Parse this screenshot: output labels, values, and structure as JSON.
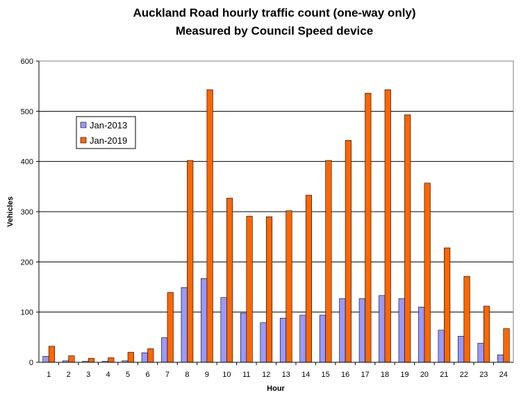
{
  "chart_data": {
    "type": "bar",
    "title": "Auckland Road hourly traffic count (one-way only)",
    "subtitle": "Measured by Council Speed device",
    "xlabel": "Hour",
    "ylabel": "Vehicles",
    "ylim": [
      0,
      600
    ],
    "yticks": [
      "0",
      "100",
      "200",
      "300",
      "400",
      "500",
      "600"
    ],
    "grid": true,
    "legend_position": "upper-left inside plot",
    "categories": [
      "1",
      "2",
      "3",
      "4",
      "5",
      "6",
      "7",
      "8",
      "9",
      "10",
      "11",
      "12",
      "13",
      "14",
      "15",
      "16",
      "17",
      "18",
      "19",
      "20",
      "21",
      "22",
      "23",
      "24"
    ],
    "series": [
      {
        "name": "Jan-2013",
        "color": "#9999ff",
        "values": [
          12,
          3,
          2,
          2,
          3,
          19,
          49,
          149,
          167,
          129,
          98,
          79,
          88,
          94,
          94,
          127,
          127,
          133,
          127,
          110,
          64,
          52,
          38,
          15
        ]
      },
      {
        "name": "Jan-2019",
        "color": "#ff6600",
        "values": [
          32,
          13,
          8,
          9,
          20,
          27,
          139,
          402,
          543,
          327,
          291,
          290,
          302,
          333,
          402,
          442,
          536,
          543,
          493,
          357,
          228,
          171,
          112,
          67
        ]
      }
    ]
  }
}
